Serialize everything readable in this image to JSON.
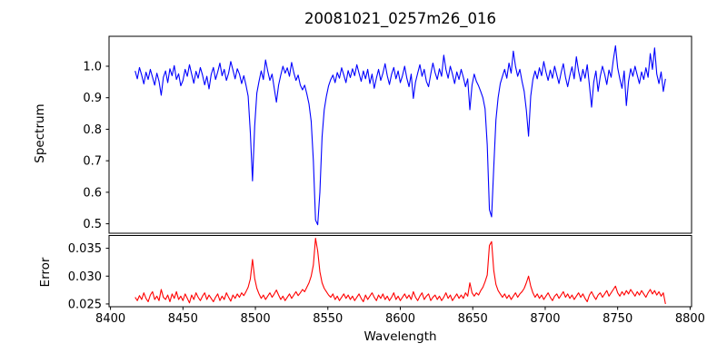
{
  "title": "20081021_0257m26_016",
  "xlabel": "Wavelength",
  "chart_data": {
    "type": "line",
    "title": "20081021_0257m26_016",
    "xlabel": "Wavelength",
    "grid": false,
    "legend": "none",
    "x_start": 8417,
    "x_step": 1.5,
    "xlim": [
      8399,
      8801
    ],
    "x_ticks": [
      8400,
      8450,
      8500,
      8550,
      8600,
      8650,
      8700,
      8750,
      8800
    ],
    "notes": "Two stacked panels sharing the wavelength axis. Top: blue spectrum with absorption lines near 8498, 8542, 8662, 8688. Bottom: red error curve with peaks at the same wavelengths.",
    "panels": [
      {
        "name": "spectrum",
        "ylabel": "Spectrum",
        "color": "#0000ff",
        "ylim": [
          0.47,
          1.095
        ],
        "y_ticks": [
          1.0,
          0.9,
          0.8,
          0.7,
          0.6,
          0.5
        ],
        "y_tick_labels": [
          "1.0",
          "0.9",
          "0.8",
          "0.7",
          "0.6",
          "0.5"
        ],
        "values": [
          0.985,
          0.96,
          0.996,
          0.972,
          0.944,
          0.981,
          0.958,
          0.99,
          0.965,
          0.94,
          0.978,
          0.952,
          0.908,
          0.965,
          0.985,
          0.948,
          0.992,
          0.97,
          1.002,
          0.958,
          0.976,
          0.938,
          0.955,
          0.99,
          0.968,
          1.005,
          0.975,
          0.946,
          0.984,
          0.962,
          0.996,
          0.972,
          0.941,
          0.968,
          0.928,
          0.974,
          0.996,
          0.958,
          0.982,
          1.01,
          0.97,
          0.99,
          0.955,
          0.978,
          1.015,
          0.988,
          0.96,
          0.992,
          0.975,
          0.945,
          0.97,
          0.94,
          0.905,
          0.79,
          0.636,
          0.81,
          0.915,
          0.952,
          0.985,
          0.958,
          1.02,
          0.985,
          0.955,
          0.975,
          0.93,
          0.886,
          0.94,
          0.972,
          1.0,
          0.978,
          0.995,
          0.968,
          1.012,
          0.98,
          0.955,
          0.972,
          0.94,
          0.925,
          0.94,
          0.912,
          0.88,
          0.825,
          0.7,
          0.512,
          0.497,
          0.6,
          0.775,
          0.862,
          0.905,
          0.938,
          0.958,
          0.972,
          0.948,
          0.98,
          0.962,
          0.995,
          0.972,
          0.948,
          0.986,
          0.964,
          0.992,
          0.97,
          1.005,
          0.978,
          0.952,
          0.985,
          0.96,
          0.99,
          0.945,
          0.975,
          0.93,
          0.962,
          0.99,
          0.955,
          0.978,
          1.008,
          0.97,
          0.942,
          0.975,
          0.996,
          0.96,
          0.985,
          0.948,
          0.97,
          1.0,
          0.962,
          0.935,
          0.975,
          0.898,
          0.95,
          0.978,
          1.005,
          0.968,
          0.99,
          0.952,
          0.935,
          0.975,
          1.01,
          0.98,
          0.958,
          0.992,
          0.968,
          1.035,
          0.99,
          0.962,
          1.0,
          0.975,
          0.945,
          0.982,
          0.958,
          0.99,
          0.965,
          0.935,
          0.96,
          0.862,
          0.94,
          0.975,
          0.952,
          0.938,
          0.92,
          0.9,
          0.865,
          0.75,
          0.545,
          0.522,
          0.68,
          0.83,
          0.9,
          0.945,
          0.968,
          0.99,
          0.962,
          1.01,
          0.978,
          1.048,
          1.0,
          0.968,
          0.99,
          0.952,
          0.92,
          0.86,
          0.778,
          0.905,
          0.958,
          0.985,
          0.96,
          0.995,
          0.97,
          1.015,
          0.982,
          0.955,
          0.988,
          0.962,
          1.0,
          0.972,
          0.945,
          0.98,
          1.008,
          0.965,
          0.935,
          0.97,
          0.998,
          0.96,
          1.03,
          0.985,
          0.952,
          0.99,
          0.962,
          1.005,
          0.94,
          0.87,
          0.95,
          0.985,
          0.92,
          0.968,
          1.0,
          0.975,
          0.942,
          0.988,
          0.965,
          1.02,
          1.065,
          0.995,
          0.96,
          0.93,
          0.985,
          0.875,
          0.952,
          0.992,
          0.968,
          1.0,
          0.972,
          0.945,
          0.982,
          0.958,
          0.995,
          0.965,
          1.04,
          0.99,
          1.058,
          0.975,
          0.945,
          0.982,
          0.92,
          0.96
        ]
      },
      {
        "name": "error",
        "ylabel": "Error",
        "color": "#ff0000",
        "ylim": [
          0.0245,
          0.0373
        ],
        "y_ticks": [
          0.035,
          0.03,
          0.025
        ],
        "y_tick_labels": [
          "0.035",
          "0.030",
          "0.025"
        ],
        "values": [
          0.0262,
          0.0256,
          0.0265,
          0.0258,
          0.027,
          0.026,
          0.0254,
          0.0266,
          0.0272,
          0.0258,
          0.0264,
          0.0256,
          0.0276,
          0.0262,
          0.0258,
          0.0266,
          0.0254,
          0.0268,
          0.026,
          0.0272,
          0.0258,
          0.0264,
          0.0256,
          0.0268,
          0.026,
          0.0252,
          0.0266,
          0.0258,
          0.027,
          0.0262,
          0.0256,
          0.0264,
          0.027,
          0.0258,
          0.0266,
          0.026,
          0.0254,
          0.0262,
          0.0268,
          0.0256,
          0.0264,
          0.0258,
          0.027,
          0.0262,
          0.0255,
          0.0266,
          0.026,
          0.0268,
          0.0262,
          0.027,
          0.0265,
          0.0272,
          0.028,
          0.0295,
          0.033,
          0.0296,
          0.0278,
          0.0268,
          0.026,
          0.0266,
          0.0258,
          0.0264,
          0.027,
          0.0262,
          0.0268,
          0.0275,
          0.0266,
          0.0258,
          0.0264,
          0.0256,
          0.0262,
          0.0268,
          0.026,
          0.0266,
          0.0272,
          0.0265,
          0.027,
          0.0276,
          0.0272,
          0.028,
          0.0288,
          0.03,
          0.032,
          0.0368,
          0.0345,
          0.0308,
          0.0288,
          0.0278,
          0.0272,
          0.0266,
          0.0262,
          0.0268,
          0.0258,
          0.0264,
          0.0256,
          0.0262,
          0.0268,
          0.026,
          0.0266,
          0.0258,
          0.0264,
          0.0256,
          0.0262,
          0.0268,
          0.026,
          0.0254,
          0.0266,
          0.0258,
          0.0264,
          0.027,
          0.0262,
          0.0256,
          0.0266,
          0.026,
          0.0268,
          0.0258,
          0.0264,
          0.0256,
          0.0262,
          0.027,
          0.0258,
          0.0264,
          0.0256,
          0.0262,
          0.0268,
          0.026,
          0.0266,
          0.0258,
          0.0272,
          0.0262,
          0.0256,
          0.0264,
          0.027,
          0.0258,
          0.0264,
          0.0268,
          0.0256,
          0.0262,
          0.0266,
          0.0258,
          0.0264,
          0.0256,
          0.0262,
          0.027,
          0.026,
          0.0266,
          0.0256,
          0.0262,
          0.0268,
          0.026,
          0.0266,
          0.026,
          0.027,
          0.0264,
          0.0288,
          0.027,
          0.0264,
          0.027,
          0.0266,
          0.0274,
          0.028,
          0.029,
          0.0302,
          0.0355,
          0.0362,
          0.031,
          0.0285,
          0.0274,
          0.0268,
          0.0262,
          0.0268,
          0.026,
          0.0266,
          0.0258,
          0.0264,
          0.027,
          0.0262,
          0.0268,
          0.0272,
          0.0278,
          0.0288,
          0.03,
          0.0282,
          0.027,
          0.0262,
          0.0268,
          0.026,
          0.0266,
          0.0258,
          0.0264,
          0.027,
          0.0262,
          0.0256,
          0.0264,
          0.0268,
          0.026,
          0.0266,
          0.0272,
          0.0262,
          0.0268,
          0.026,
          0.0266,
          0.0258,
          0.0264,
          0.027,
          0.0262,
          0.0268,
          0.026,
          0.0254,
          0.0266,
          0.0272,
          0.0264,
          0.0258,
          0.0266,
          0.027,
          0.0262,
          0.0268,
          0.0274,
          0.0264,
          0.027,
          0.0276,
          0.0282,
          0.027,
          0.0264,
          0.0272,
          0.0266,
          0.0274,
          0.0268,
          0.0276,
          0.027,
          0.0264,
          0.0272,
          0.0266,
          0.0274,
          0.0268,
          0.0262,
          0.027,
          0.0276,
          0.0268,
          0.0274,
          0.0266,
          0.0272,
          0.0264,
          0.027,
          0.025
        ]
      }
    ]
  }
}
